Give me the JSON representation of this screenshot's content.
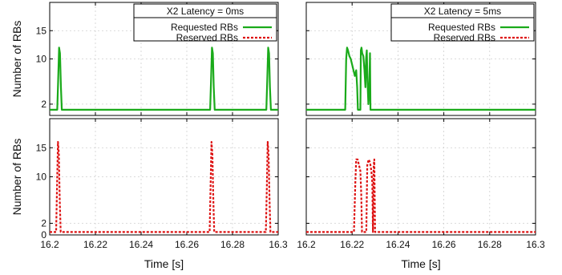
{
  "chart_data": [
    {
      "type": "line",
      "panel": "top-left",
      "ylabel": "Number of RBs",
      "xlabel": "",
      "xlim": [
        16.2,
        16.3
      ],
      "ylim": [
        0,
        20
      ],
      "yticks": [
        2,
        10,
        15
      ],
      "grid": true,
      "legend": {
        "title": "X2 Latency = 0ms",
        "position": "top-right",
        "entries": [
          "Requested RBs",
          "Reserved RBs"
        ]
      },
      "series": [
        {
          "name": "Requested RBs",
          "color": "#1aaa1a",
          "x": [
            16.2,
            16.2033,
            16.2037,
            16.2041,
            16.2045,
            16.2049,
            16.2053,
            16.2057,
            16.2702,
            16.2706,
            16.271,
            16.2714,
            16.2718,
            16.2722,
            16.2948,
            16.2952,
            16.2956,
            16.296,
            16.2964,
            16.2968,
            16.3
          ],
          "y": [
            1,
            1,
            6,
            12,
            11,
            5,
            1,
            1,
            1,
            6,
            12,
            11,
            5,
            1,
            1,
            6,
            12,
            11,
            5,
            1,
            1
          ]
        }
      ]
    },
    {
      "type": "line",
      "panel": "top-right",
      "ylabel": "",
      "xlabel": "",
      "xlim": [
        16.2,
        16.3
      ],
      "ylim": [
        0,
        20
      ],
      "yticks": [
        2,
        10,
        15
      ],
      "grid": true,
      "legend": {
        "title": "X2 Latency = 5ms",
        "position": "top-right",
        "entries": [
          "Requested RBs",
          "Reserved RBs"
        ]
      },
      "series": [
        {
          "name": "Requested RBs",
          "color": "#1aaa1a",
          "x": [
            16.2,
            16.217,
            16.2174,
            16.2178,
            16.2182,
            16.2188,
            16.2194,
            16.22,
            16.2206,
            16.2212,
            16.2218,
            16.2222,
            16.2225,
            16.2228,
            16.2236,
            16.2238,
            16.2241,
            16.2244,
            16.2249,
            16.2254,
            16.2258,
            16.2261,
            16.2264,
            16.2267,
            16.2271,
            16.2275,
            16.2278,
            16.228,
            16.3
          ],
          "y": [
            1,
            1,
            10,
            12,
            11.5,
            10.5,
            10,
            9,
            8,
            7,
            8,
            5,
            1,
            1,
            1,
            11.5,
            12,
            11,
            10.5,
            8,
            5,
            10,
            11.5,
            6,
            2,
            5,
            11,
            1,
            1
          ]
        }
      ]
    },
    {
      "type": "line",
      "panel": "bottom-left",
      "ylabel": "Number of RBs",
      "xlabel": "Time [s]",
      "xlim": [
        16.2,
        16.3
      ],
      "ylim": [
        0,
        20
      ],
      "xticks": [
        "16.2",
        "16.22",
        "16.24",
        "16.26",
        "16.28",
        "16.3"
      ],
      "yticks": [
        0,
        2,
        10,
        15
      ],
      "grid": true,
      "series": [
        {
          "name": "Reserved RBs",
          "color": "#dd1111",
          "x": [
            16.2,
            16.2028,
            16.2032,
            16.2036,
            16.204,
            16.2044,
            16.2048,
            16.2052,
            16.27,
            16.2704,
            16.2708,
            16.2712,
            16.2716,
            16.272,
            16.2946,
            16.295,
            16.2954,
            16.2958,
            16.2962,
            16.2966,
            16.3
          ],
          "y": [
            0.5,
            0.5,
            8,
            16,
            14,
            6,
            0.5,
            0.5,
            0.5,
            8,
            16,
            14,
            6,
            0.5,
            0.5,
            8,
            16,
            14,
            6,
            0.5,
            0.5
          ]
        }
      ]
    },
    {
      "type": "line",
      "panel": "bottom-right",
      "ylabel": "",
      "xlabel": "Time [s]",
      "xlim": [
        16.2,
        16.3
      ],
      "ylim": [
        0,
        20
      ],
      "xticks": [
        "16.2",
        "16.22",
        "16.24",
        "16.26",
        "16.28",
        "16.3"
      ],
      "yticks": [
        0,
        2,
        10,
        15
      ],
      "grid": true,
      "series": [
        {
          "name": "Reserved RBs",
          "color": "#dd1111",
          "x": [
            16.2,
            16.2208,
            16.2214,
            16.2218,
            16.2224,
            16.223,
            16.2236,
            16.224,
            16.2243,
            16.2246,
            16.2262,
            16.2266,
            16.2272,
            16.2278,
            16.2284,
            16.2288,
            16.2291,
            16.2294,
            16.2297,
            16.23,
            16.2304,
            16.3
          ],
          "y": [
            0.5,
            0.5,
            9,
            13,
            13,
            12,
            11,
            7,
            0.5,
            0.5,
            0.5,
            12,
            13,
            12.5,
            11,
            9,
            0.5,
            12,
            13,
            0.5,
            0.5,
            0.5
          ]
        }
      ]
    }
  ]
}
